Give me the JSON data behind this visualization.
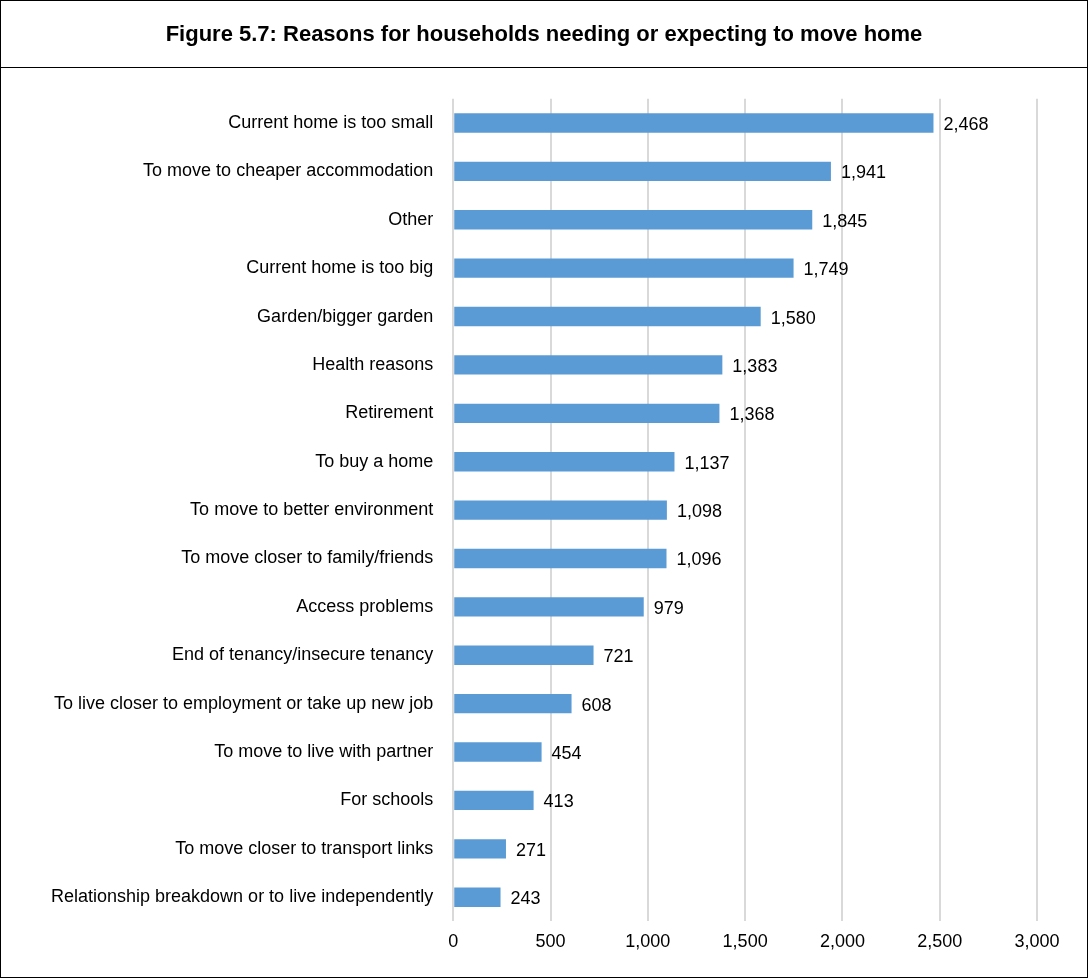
{
  "chart_data": {
    "type": "bar",
    "orientation": "horizontal",
    "title": "Figure 5.7: Reasons for households needing or expecting to move home",
    "categories": [
      "Current home is too small",
      "To move to cheaper accommodation",
      "Other",
      "Current home is too big",
      "Garden/bigger garden",
      "Health reasons",
      "Retirement",
      "To buy a home",
      "To move to better environment",
      "To move closer to family/friends",
      "Access problems",
      "End of tenancy/insecure tenancy",
      "To live closer to employment or take up new job",
      "To move to live with partner",
      "For schools",
      "To move closer to transport links",
      "Relationship breakdown or to live independently"
    ],
    "values": [
      2468,
      1941,
      1845,
      1749,
      1580,
      1383,
      1368,
      1137,
      1098,
      1096,
      979,
      721,
      608,
      454,
      413,
      271,
      243
    ],
    "value_labels": [
      "2,468",
      "1,941",
      "1,845",
      "1,749",
      "1,580",
      "1,383",
      "1,368",
      "1,137",
      "1,098",
      "1,096",
      "979",
      "721",
      "608",
      "454",
      "413",
      "271",
      "243"
    ],
    "color": "#5b9bd5",
    "xlim": [
      0,
      3000
    ],
    "xticks": [
      0,
      500,
      {
        "value": 1000,
        "label": "1,000"
      },
      {
        "value": 1500,
        "label": "1,500"
      },
      {
        "value": 2000,
        "label": "2,000"
      },
      {
        "value": 2500,
        "label": "2,500"
      },
      {
        "value": 3000,
        "label": "3,000"
      }
    ],
    "grid": "x",
    "legend": false
  }
}
